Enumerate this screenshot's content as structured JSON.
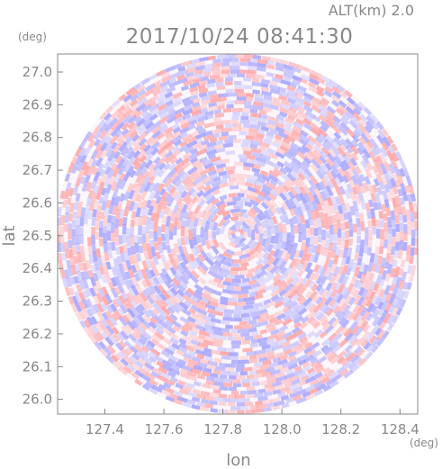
{
  "header": {
    "altitude_label": "ALT(km)  2.0",
    "timestamp": "2017/10/24 08:41:30",
    "y_unit": "(deg)",
    "x_unit": "(deg)"
  },
  "chart_data": {
    "type": "heatmap",
    "title": "2017/10/24 08:41:30",
    "subtitle": "ALT(km)  2.0",
    "xlabel": "lon",
    "ylabel": "lat",
    "x_unit": "(deg)",
    "y_unit": "(deg)",
    "xlim": [
      127.24,
      128.46
    ],
    "ylim": [
      25.955,
      27.055
    ],
    "x_ticks": [
      127.4,
      127.6,
      127.8,
      128.0,
      128.2,
      128.4
    ],
    "x_tick_labels": [
      "127.4",
      "127.6",
      "127.8",
      "128.0",
      "128.2",
      "128.4"
    ],
    "y_ticks": [
      26.0,
      26.1,
      26.2,
      26.3,
      26.4,
      26.5,
      26.6,
      26.7,
      26.8,
      26.9,
      27.0
    ],
    "y_tick_labels": [
      "26.0",
      "26.1",
      "26.2",
      "26.3",
      "26.4",
      "26.5",
      "26.6",
      "26.7",
      "26.8",
      "26.9",
      "27.0"
    ],
    "grid": false,
    "radar_center": {
      "lon": 127.85,
      "lat": 26.505
    },
    "radar_radius_deg": {
      "lon": 0.615,
      "lat": 0.55
    },
    "colors": {
      "positive": "#ff9a9a",
      "negative": "#9a9aff",
      "frame": "#888888"
    }
  }
}
